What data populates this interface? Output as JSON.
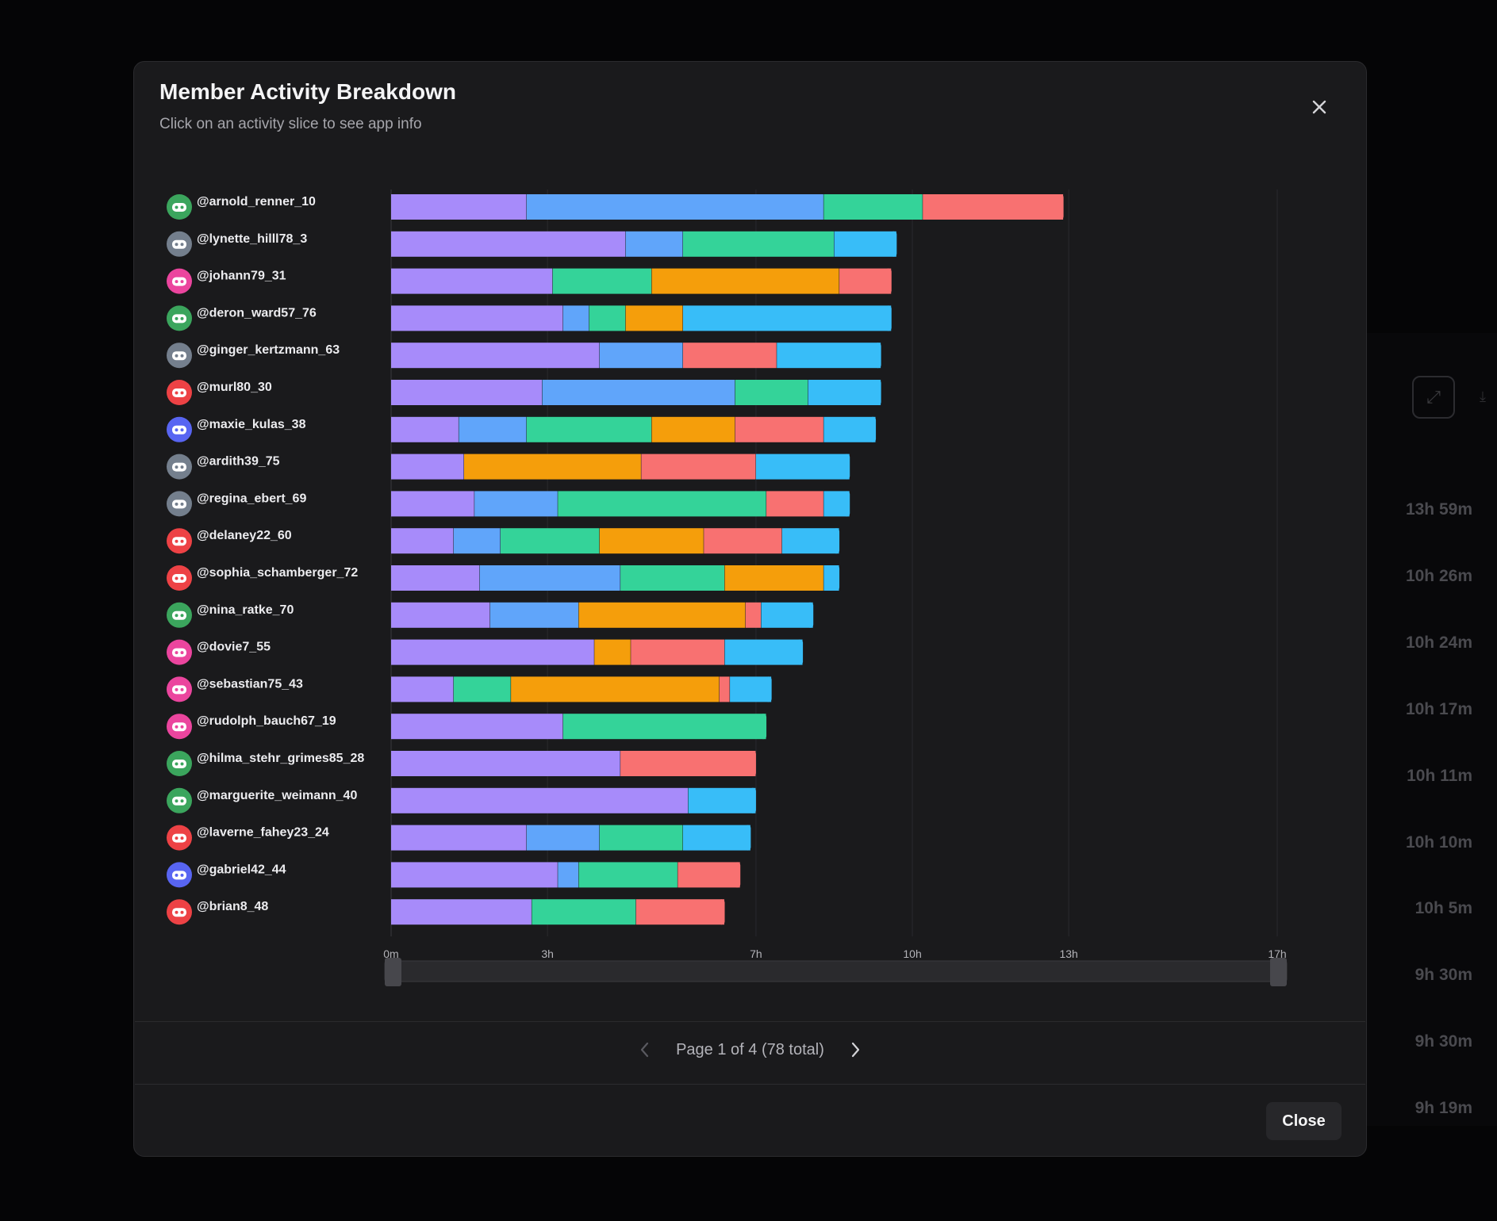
{
  "modal": {
    "title": "Member Activity Breakdown",
    "subtitle": "Click on an activity slice to see app info",
    "close_label": "Close"
  },
  "pagination": {
    "text": "Page 1 of 4 (78 total)"
  },
  "background": {
    "durations": [
      "13h 59m",
      "10h 26m",
      "10h 24m",
      "10h 17m",
      "10h 11m",
      "10h 10m",
      "10h 5m",
      "9h 30m",
      "9h 30m",
      "9h 19m"
    ]
  },
  "colors": {
    "purple": "#a78bfa",
    "blue": "#60a5fa",
    "green": "#34d399",
    "orange": "#f59e0b",
    "red": "#f87171",
    "cyan": "#38bdf8",
    "avatar_green": "#3ba55d",
    "avatar_gray": "#747f8d",
    "avatar_pink": "#eb459e",
    "avatar_red": "#ed4245",
    "avatar_blurple": "#5865f2"
  },
  "chart_data": {
    "type": "bar",
    "orientation": "horizontal",
    "stacked": true,
    "unit": "hours",
    "x_ticks": [
      "0m",
      "3h",
      "7h",
      "10h",
      "13h",
      "17h"
    ],
    "x_tick_values": [
      0,
      3,
      7,
      10,
      13,
      17
    ],
    "xlim": [
      0,
      17
    ],
    "grid": true,
    "categories": [
      "@arnold_renner_10",
      "@lynette_hilll78_3",
      "@johann79_31",
      "@deron_ward57_76",
      "@ginger_kertzmann_63",
      "@murl80_30",
      "@maxie_kulas_38",
      "@ardith39_75",
      "@regina_ebert_69",
      "@delaney22_60",
      "@sophia_schamberger_72",
      "@nina_ratke_70",
      "@dovie7_55",
      "@sebastian75_43",
      "@rudolph_bauch67_19",
      "@hilma_stehr_grimes85_28",
      "@marguerite_weimann_40",
      "@laverne_fahey23_24",
      "@gabriel42_44",
      "@brian8_48"
    ],
    "avatar_colors": [
      "avatar_green",
      "avatar_gray",
      "avatar_pink",
      "avatar_green",
      "avatar_gray",
      "avatar_red",
      "avatar_blurple",
      "avatar_gray",
      "avatar_gray",
      "avatar_red",
      "avatar_red",
      "avatar_green",
      "avatar_pink",
      "avatar_pink",
      "avatar_pink",
      "avatar_green",
      "avatar_green",
      "avatar_red",
      "avatar_blurple",
      "avatar_red"
    ],
    "rows": [
      [
        [
          "purple",
          2.6
        ],
        [
          "blue",
          5.7
        ],
        [
          "green",
          1.9
        ],
        [
          "red",
          2.7
        ]
      ],
      [
        [
          "purple",
          4.5
        ],
        [
          "blue",
          1.1
        ],
        [
          "green",
          2.9
        ],
        [
          "cyan",
          1.2
        ]
      ],
      [
        [
          "purple",
          3.1
        ],
        [
          "green",
          1.9
        ],
        [
          "orange",
          3.6
        ],
        [
          "red",
          1.0
        ]
      ],
      [
        [
          "purple",
          3.3
        ],
        [
          "blue",
          0.5
        ],
        [
          "green",
          0.7
        ],
        [
          "orange",
          1.1
        ],
        [
          "cyan",
          4.0
        ]
      ],
      [
        [
          "purple",
          4.0
        ],
        [
          "blue",
          1.6
        ],
        [
          "red",
          1.8
        ],
        [
          "cyan",
          2.0
        ]
      ],
      [
        [
          "purple",
          2.9
        ],
        [
          "blue",
          3.7
        ],
        [
          "green",
          1.4
        ],
        [
          "cyan",
          1.4
        ]
      ],
      [
        [
          "purple",
          1.3
        ],
        [
          "blue",
          1.3
        ],
        [
          "green",
          2.4
        ],
        [
          "orange",
          1.6
        ],
        [
          "red",
          1.7
        ],
        [
          "cyan",
          1.0
        ]
      ],
      [
        [
          "purple",
          1.4
        ],
        [
          "orange",
          3.4
        ],
        [
          "red",
          2.2
        ],
        [
          "cyan",
          1.8
        ]
      ],
      [
        [
          "purple",
          1.6
        ],
        [
          "blue",
          1.6
        ],
        [
          "green",
          4.0
        ],
        [
          "red",
          1.1
        ],
        [
          "cyan",
          0.5
        ]
      ],
      [
        [
          "purple",
          1.2
        ],
        [
          "blue",
          0.9
        ],
        [
          "green",
          1.9
        ],
        [
          "orange",
          2.0
        ],
        [
          "red",
          1.5
        ],
        [
          "cyan",
          1.1
        ]
      ],
      [
        [
          "purple",
          1.7
        ],
        [
          "blue",
          2.7
        ],
        [
          "green",
          2.0
        ],
        [
          "orange",
          1.9
        ],
        [
          "cyan",
          0.3
        ]
      ],
      [
        [
          "purple",
          1.9
        ],
        [
          "blue",
          1.7
        ],
        [
          "orange",
          3.2
        ],
        [
          "red",
          0.3
        ],
        [
          "cyan",
          1.0
        ]
      ],
      [
        [
          "purple",
          3.9
        ],
        [
          "orange",
          0.7
        ],
        [
          "red",
          1.8
        ],
        [
          "cyan",
          1.5
        ]
      ],
      [
        [
          "purple",
          1.2
        ],
        [
          "green",
          1.1
        ],
        [
          "orange",
          4.0
        ],
        [
          "red",
          0.2
        ],
        [
          "cyan",
          0.8
        ]
      ],
      [
        [
          "purple",
          3.3
        ],
        [
          "green",
          3.9
        ]
      ],
      [
        [
          "purple",
          4.4
        ],
        [
          "red",
          2.6
        ]
      ],
      [
        [
          "purple",
          5.7
        ],
        [
          "cyan",
          1.3
        ]
      ],
      [
        [
          "purple",
          2.6
        ],
        [
          "blue",
          1.4
        ],
        [
          "green",
          1.6
        ],
        [
          "cyan",
          1.3
        ]
      ],
      [
        [
          "purple",
          3.2
        ],
        [
          "blue",
          0.4
        ],
        [
          "green",
          1.9
        ],
        [
          "red",
          1.2
        ]
      ],
      [
        [
          "purple",
          2.7
        ],
        [
          "green",
          2.0
        ],
        [
          "red",
          1.7
        ]
      ]
    ]
  }
}
